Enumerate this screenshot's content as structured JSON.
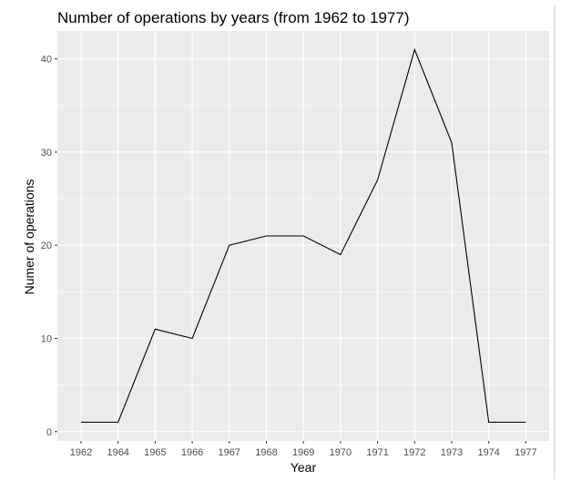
{
  "chart_data": {
    "type": "line",
    "title": "Number of operations by years (from 1962 to 1977)",
    "xlabel": "Year",
    "ylabel": "Numer of operations",
    "categories": [
      "1962",
      "1964",
      "1965",
      "1966",
      "1967",
      "1968",
      "1969",
      "1970",
      "1971",
      "1972",
      "1973",
      "1974",
      "1977"
    ],
    "values": [
      1,
      1,
      11,
      10,
      20,
      21,
      21,
      19,
      27,
      41,
      31,
      1,
      1
    ],
    "ylim": [
      -1,
      43
    ],
    "y_ticks": [
      0,
      10,
      20,
      30,
      40
    ],
    "grid": true,
    "legend": "none",
    "colors": {
      "panel_background": "#ebebeb",
      "grid_line": "#ffffff",
      "series_line": "#000000",
      "tick_text": "#4d4d4d"
    }
  }
}
